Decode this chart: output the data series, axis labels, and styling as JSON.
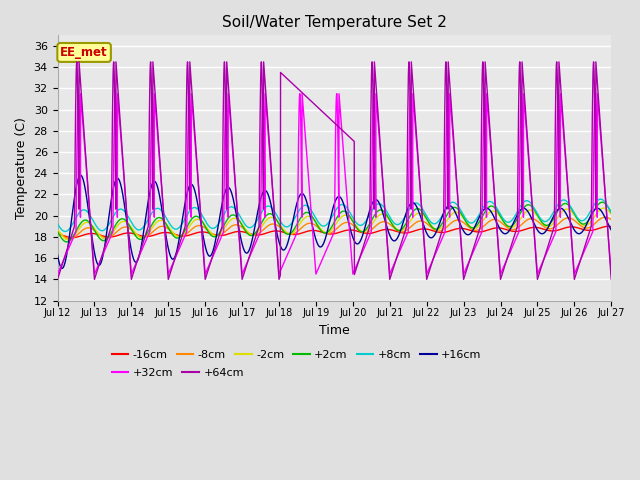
{
  "title": "Soil/Water Temperature Set 2",
  "xlabel": "Time",
  "ylabel": "Temperature (C)",
  "ylim": [
    12,
    37
  ],
  "yticks": [
    12,
    14,
    16,
    18,
    20,
    22,
    24,
    26,
    28,
    30,
    32,
    34,
    36
  ],
  "xlim": [
    0,
    360
  ],
  "xtick_labels": [
    "Jul 12",
    "Jul 13",
    "Jul 14",
    "Jul 15",
    "Jul 16",
    "Jul 17",
    "Jul 18",
    "Jul 19",
    "Jul 20",
    "Jul 21",
    "Jul 22",
    "Jul 23",
    "Jul 24",
    "Jul 25",
    "Jul 26",
    "Jul 27"
  ],
  "xtick_positions": [
    0,
    24,
    48,
    72,
    96,
    120,
    144,
    168,
    192,
    216,
    240,
    264,
    288,
    312,
    336,
    360
  ],
  "series_labels": [
    "-16cm",
    "-8cm",
    "-2cm",
    "+2cm",
    "+8cm",
    "+16cm",
    "+32cm",
    "+64cm"
  ],
  "series_colors": [
    "#ff0000",
    "#ff8800",
    "#dddd00",
    "#00bb00",
    "#00cccc",
    "#000099",
    "#ff00ff",
    "#aa00aa"
  ],
  "background_color": "#e0e0e0",
  "plot_bg_color": "#e8e8e8",
  "grid_color": "#ffffff",
  "annotation_text": "EE_met",
  "annotation_bg": "#ffff99",
  "annotation_border": "#999900",
  "annotation_text_color": "#cc0000"
}
